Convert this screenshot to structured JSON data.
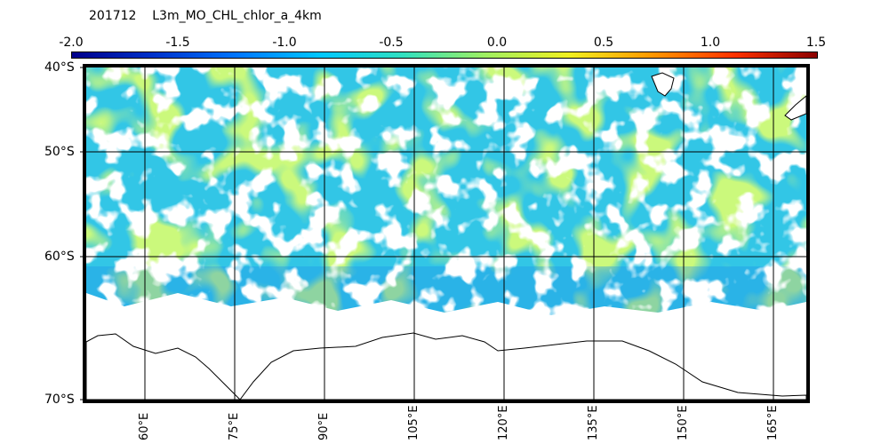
{
  "title": "201712    L3m_MO_CHL_chlor_a_4km",
  "colorbar": {
    "ticks": [
      "-2.0",
      "-1.5",
      "-1.0",
      "-0.5",
      "0.0",
      "0.5",
      "1.0",
      "1.5"
    ],
    "colors": [
      "#00008b",
      "#0033cc",
      "#0077ff",
      "#00c8ff",
      "#30e0c0",
      "#a0f060",
      "#f0f020",
      "#ff9900",
      "#ff3300",
      "#8b0000"
    ]
  },
  "map": {
    "lat_labels": [
      "40°S",
      "50°S",
      "60°S",
      "70°S"
    ],
    "lon_labels": [
      "60°E",
      "75°E",
      "90°E",
      "105°E",
      "120°E",
      "135°E",
      "150°E",
      "165°E"
    ],
    "ocean_color": "#32c6e6",
    "land_color": "#ffffff"
  }
}
